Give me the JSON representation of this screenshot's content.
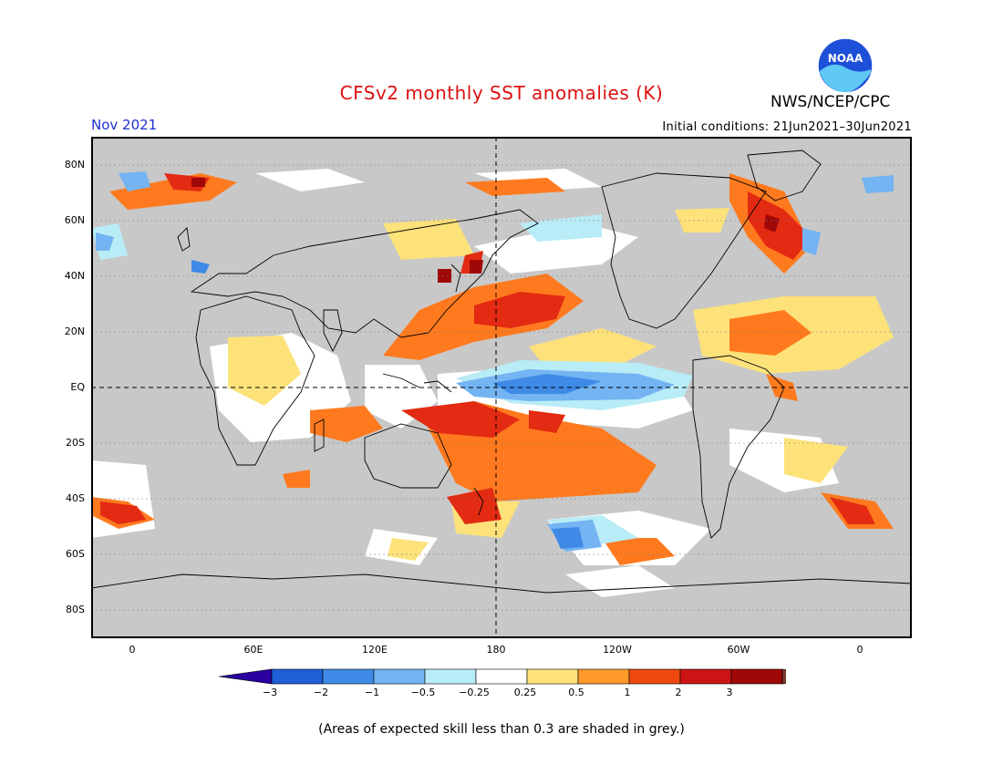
{
  "header": {
    "title": "CFSv2 monthly SST anomalies (K)",
    "org": "NWS/NCEP/CPC",
    "month": "Nov 2021",
    "initial_conditions": "Initial conditions: 21Jun2021–30Jun2021"
  },
  "logo": {
    "text": "NOAA",
    "icon": "noaa-logo"
  },
  "map": {
    "lat_labels": [
      "80N",
      "60N",
      "40N",
      "20N",
      "EQ",
      "20S",
      "40S",
      "60S",
      "80S"
    ],
    "lon_labels": [
      "0",
      "60E",
      "120E",
      "180",
      "120W",
      "60W",
      "0"
    ],
    "land_color": "#c8c8c8",
    "grid_style": "dashed"
  },
  "colorbar": {
    "labels": [
      "−3",
      "−2",
      "−1",
      "−0.5",
      "−0.25",
      "0.25",
      "0.5",
      "1",
      "2",
      "3"
    ],
    "colors": [
      "#2a00a0",
      "#1e5ed6",
      "#3f8ae6",
      "#74b4f2",
      "#b8ecf6",
      "#ffffff",
      "#fde27a",
      "#ff9a2a",
      "#ee4a10",
      "#cc1414",
      "#a00808",
      "#7a3a2c"
    ]
  },
  "footnote": "(Areas of expected skill less than 0.3 are shaded in grey.)"
}
